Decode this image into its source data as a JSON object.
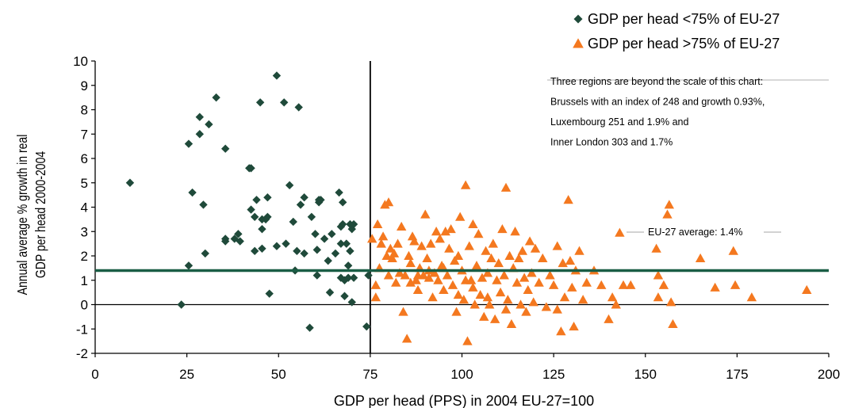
{
  "chart_data": {
    "type": "scatter",
    "xlabel": "GDP per head (PPS) in 2004 EU-27=100",
    "ylabel_lines": [
      "Annual average % growth in real",
      "GDP per head 2000-2004"
    ],
    "xlim": [
      0,
      200
    ],
    "ylim": [
      -2,
      10
    ],
    "x_ticks": [
      0,
      25,
      50,
      75,
      100,
      125,
      150,
      175,
      200
    ],
    "y_ticks": [
      -2,
      -1,
      0,
      1,
      2,
      3,
      4,
      5,
      6,
      7,
      8,
      9,
      10
    ],
    "legend_placement": "top-right",
    "reference_lines": {
      "vertical_x": 75,
      "average_y": 1.4,
      "average_label": "EU-27 average: 1.4%"
    },
    "annotation_lines": [
      "Three regions are beyond the scale of this chart:",
      "Brussels with an index of 248 and growth 0.93%,",
      "Luxembourg 251 and 1.9% and",
      "Inner London 303 and 1.7%"
    ],
    "colors": {
      "below": "#1f4a3a",
      "above": "#f4781f",
      "average_line": "#1a5e45",
      "axis": "#000000"
    },
    "series": [
      {
        "name": "GDP per head <75% of EU-27",
        "marker": "diamond",
        "points": [
          [
            9.5,
            5
          ],
          [
            23.5,
            0
          ],
          [
            25.5,
            1.6
          ],
          [
            25.5,
            6.6
          ],
          [
            26.5,
            4.6
          ],
          [
            28.5,
            7.7
          ],
          [
            28.5,
            7
          ],
          [
            29.5,
            4.1
          ],
          [
            30,
            2.1
          ],
          [
            31,
            7.4
          ],
          [
            33,
            8.5
          ],
          [
            35.5,
            6.4
          ],
          [
            35.5,
            2.7
          ],
          [
            35.5,
            2.6
          ],
          [
            38,
            2.7
          ],
          [
            39,
            2.9
          ],
          [
            39.5,
            2.6
          ],
          [
            42,
            5.6
          ],
          [
            42.5,
            5.6
          ],
          [
            42.5,
            3.9
          ],
          [
            43.5,
            3.6
          ],
          [
            43.5,
            2.2
          ],
          [
            44,
            4.3
          ],
          [
            45,
            8.3
          ],
          [
            45.5,
            3.5
          ],
          [
            45.5,
            3.1
          ],
          [
            45.5,
            2.3
          ],
          [
            46.5,
            3.5
          ],
          [
            47,
            4.4
          ],
          [
            47,
            3.6
          ],
          [
            47.5,
            0.45
          ],
          [
            49.5,
            9.4
          ],
          [
            49.5,
            2.4
          ],
          [
            51.5,
            8.3
          ],
          [
            52,
            2.5
          ],
          [
            53,
            4.9
          ],
          [
            54,
            3.4
          ],
          [
            54.5,
            1.4
          ],
          [
            55,
            2.2
          ],
          [
            55.5,
            8.1
          ],
          [
            56,
            4.1
          ],
          [
            57,
            4.4
          ],
          [
            57,
            2.1
          ],
          [
            58.5,
            -0.95
          ],
          [
            59,
            3.6
          ],
          [
            60,
            2.9
          ],
          [
            60.5,
            1.2
          ],
          [
            60.5,
            2.25
          ],
          [
            61,
            4.3
          ],
          [
            61.5,
            4.3
          ],
          [
            61,
            4.2
          ],
          [
            62.5,
            2.7
          ],
          [
            63.5,
            1.8
          ],
          [
            64,
            0.5
          ],
          [
            64.5,
            2.9
          ],
          [
            65.5,
            2.1
          ],
          [
            66.5,
            4.6
          ],
          [
            67,
            1.1
          ],
          [
            67,
            2.5
          ],
          [
            67,
            3.2
          ],
          [
            67.5,
            3.3
          ],
          [
            67.5,
            4.2
          ],
          [
            68,
            1.0
          ],
          [
            68,
            0.35
          ],
          [
            68.5,
            2.5
          ],
          [
            69,
            1.6
          ],
          [
            69,
            1.1
          ],
          [
            69.5,
            2.2
          ],
          [
            69.5,
            3.3
          ],
          [
            70,
            3.1
          ],
          [
            70,
            0.1
          ],
          [
            70.5,
            1.1
          ],
          [
            74,
            -0.9
          ],
          [
            74.5,
            1.2
          ],
          [
            70.5,
            3.3
          ]
        ]
      },
      {
        "name": "GDP per head >75% of EU-27",
        "marker": "triangle",
        "points": [
          [
            75.5,
            2.7
          ],
          [
            76.5,
            0.8
          ],
          [
            76.5,
            0.3
          ],
          [
            77,
            3.3
          ],
          [
            77.5,
            1.5
          ],
          [
            78,
            2.5
          ],
          [
            78.5,
            2.8
          ],
          [
            79,
            4.1
          ],
          [
            79.5,
            2.0
          ],
          [
            80,
            4.2
          ],
          [
            80.5,
            2.3
          ],
          [
            81,
            1.9
          ],
          [
            81.5,
            2.1
          ],
          [
            82,
            0.9
          ],
          [
            82.5,
            2.5
          ],
          [
            83,
            1.3
          ],
          [
            83.5,
            3.2
          ],
          [
            84,
            -0.3
          ],
          [
            84.5,
            1.2
          ],
          [
            85,
            -1.4
          ],
          [
            85.5,
            2.0
          ],
          [
            86,
            1.7
          ],
          [
            86.5,
            2.8
          ],
          [
            87,
            2.6
          ],
          [
            87.5,
            1.0
          ],
          [
            88,
            0.6
          ],
          [
            88.5,
            1.5
          ],
          [
            89,
            2.4
          ],
          [
            89.5,
            1.2
          ],
          [
            90,
            3.7
          ],
          [
            90.5,
            1.9
          ],
          [
            91,
            1.1
          ],
          [
            91.5,
            2.5
          ],
          [
            92,
            0.3
          ],
          [
            92.5,
            1.3
          ],
          [
            93,
            3.0
          ],
          [
            93.5,
            1.0
          ],
          [
            94,
            2.7
          ],
          [
            94.5,
            1.6
          ],
          [
            95,
            0.6
          ],
          [
            95.5,
            3.0
          ],
          [
            96,
            1.2
          ],
          [
            96.5,
            2.3
          ],
          [
            97,
            3.1
          ],
          [
            97.5,
            0.8
          ],
          [
            98,
            1.8
          ],
          [
            98.5,
            -0.3
          ],
          [
            99,
            2.0
          ],
          [
            99.5,
            3.6
          ],
          [
            100,
            1.4
          ],
          [
            100.5,
            0.2
          ],
          [
            101,
            4.9
          ],
          [
            101.5,
            -1.5
          ],
          [
            102,
            2.4
          ],
          [
            102.5,
            1.0
          ],
          [
            103,
            3.3
          ],
          [
            103.5,
            0.0
          ],
          [
            104,
            1.6
          ],
          [
            104.5,
            2.9
          ],
          [
            105,
            0.4
          ],
          [
            105.5,
            1.1
          ],
          [
            106,
            -0.5
          ],
          [
            106.5,
            2.2
          ],
          [
            107,
            1.3
          ],
          [
            107.5,
            0.0
          ],
          [
            108,
            1.9
          ],
          [
            108.5,
            2.5
          ],
          [
            109,
            -0.6
          ],
          [
            109.5,
            1.0
          ],
          [
            110,
            1.7
          ],
          [
            110.5,
            0.5
          ],
          [
            111,
            3.1
          ],
          [
            111.5,
            1.2
          ],
          [
            112,
            4.8
          ],
          [
            112.5,
            0.2
          ],
          [
            113,
            2.0
          ],
          [
            113.5,
            -0.8
          ],
          [
            114,
            1.5
          ],
          [
            114.5,
            3.0
          ],
          [
            115,
            0.9
          ],
          [
            115.5,
            1.9
          ],
          [
            116,
            0.0
          ],
          [
            116.5,
            2.2
          ],
          [
            117,
            1.1
          ],
          [
            117.5,
            -0.3
          ],
          [
            118,
            0.6
          ],
          [
            118.5,
            2.6
          ],
          [
            119,
            1.3
          ],
          [
            119.5,
            0.1
          ],
          [
            120,
            2.3
          ],
          [
            121,
            0.9
          ],
          [
            122,
            1.9
          ],
          [
            123,
            -0.1
          ],
          [
            124,
            1.2
          ],
          [
            125,
            0.8
          ],
          [
            126,
            2.4
          ],
          [
            127,
            -1.1
          ],
          [
            127.5,
            1.7
          ],
          [
            128,
            0.3
          ],
          [
            129,
            4.3
          ],
          [
            129.5,
            1.8
          ],
          [
            130,
            0.7
          ],
          [
            130.5,
            -0.9
          ],
          [
            131,
            1.4
          ],
          [
            132,
            2.2
          ],
          [
            133,
            0.2
          ],
          [
            134,
            0.9
          ],
          [
            136,
            1.4
          ],
          [
            138,
            0.8
          ],
          [
            140,
            -0.6
          ],
          [
            141,
            0.3
          ],
          [
            142,
            0.0
          ],
          [
            143,
            2.95
          ],
          [
            144,
            0.8
          ],
          [
            146,
            0.8
          ],
          [
            153,
            2.3
          ],
          [
            153.5,
            1.2
          ],
          [
            153.5,
            0.3
          ],
          [
            155,
            0.8
          ],
          [
            156,
            3.7
          ],
          [
            156.5,
            4.1
          ],
          [
            157,
            0.1
          ],
          [
            157.5,
            -0.8
          ],
          [
            165,
            1.9
          ],
          [
            169,
            0.7
          ],
          [
            174,
            2.2
          ],
          [
            174.5,
            0.8
          ],
          [
            179,
            0.3
          ],
          [
            194,
            0.6
          ],
          [
            126,
            -0.2
          ],
          [
            112,
            -0.2
          ],
          [
            107,
            0.3
          ],
          [
            99,
            0.4
          ],
          [
            95,
            1.5
          ],
          [
            91,
            1.4
          ],
          [
            88,
            1.2
          ],
          [
            86,
            0.9
          ],
          [
            80,
            1.2
          ],
          [
            101,
            1.0
          ],
          [
            103,
            0.7
          ]
        ]
      }
    ]
  }
}
